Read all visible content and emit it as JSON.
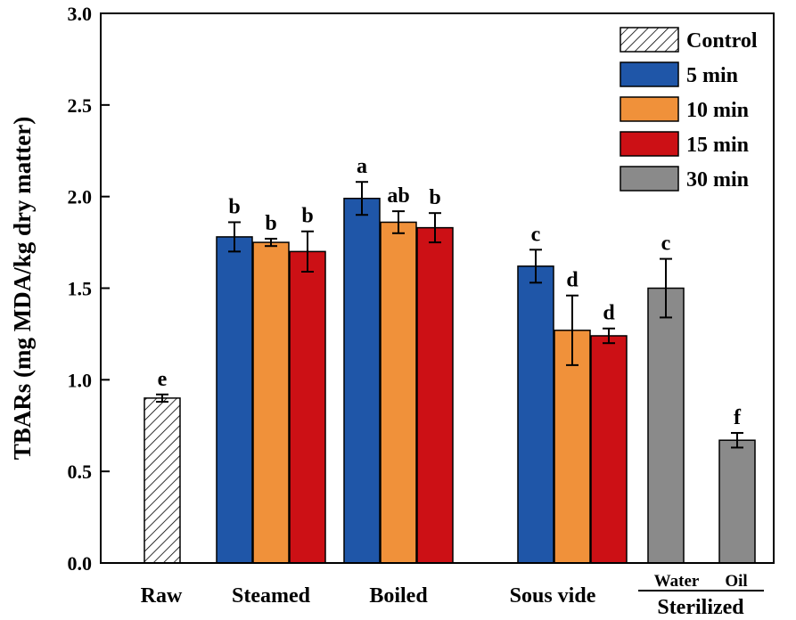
{
  "chart_data": {
    "type": "bar",
    "ylabel": "TBARs (mg MDA/kg dry matter)",
    "ylim": [
      0,
      3.0
    ],
    "yticks": [
      "0.0",
      "0.5",
      "1.0",
      "1.5",
      "2.0",
      "2.5",
      "3.0"
    ],
    "groups": [
      {
        "label": "Raw",
        "bars": [
          {
            "series": "Control",
            "value": 0.9,
            "error": 0.02,
            "sig": "e"
          }
        ]
      },
      {
        "label": "Steamed",
        "bars": [
          {
            "series": "5 min",
            "value": 1.78,
            "error": 0.08,
            "sig": "b"
          },
          {
            "series": "10 min",
            "value": 1.75,
            "error": 0.02,
            "sig": "b"
          },
          {
            "series": "15 min",
            "value": 1.7,
            "error": 0.11,
            "sig": "b"
          }
        ]
      },
      {
        "label": "Boiled",
        "bars": [
          {
            "series": "5 min",
            "value": 1.99,
            "error": 0.09,
            "sig": "a"
          },
          {
            "series": "10 min",
            "value": 1.86,
            "error": 0.06,
            "sig": "ab"
          },
          {
            "series": "15 min",
            "value": 1.83,
            "error": 0.08,
            "sig": "b"
          }
        ]
      },
      {
        "label": "Sous vide",
        "bars": [
          {
            "series": "5 min",
            "value": 1.62,
            "error": 0.09,
            "sig": "c"
          },
          {
            "series": "10 min",
            "value": 1.27,
            "error": 0.19,
            "sig": "d"
          },
          {
            "series": "15 min",
            "value": 1.24,
            "error": 0.04,
            "sig": "d"
          }
        ]
      },
      {
        "label": "Sterilized",
        "subgroups": [
          "Water",
          "Oil"
        ],
        "bars": [
          {
            "series": "30 min",
            "value": 1.5,
            "error": 0.16,
            "sig": "c"
          },
          {
            "series": "30 min",
            "value": 0.67,
            "error": 0.04,
            "sig": "f"
          }
        ]
      }
    ],
    "legend": [
      {
        "name": "Control",
        "color": "#ffffff",
        "pattern": "hatch"
      },
      {
        "name": "5 min",
        "color": "#1f56a8"
      },
      {
        "name": "10 min",
        "color": "#f0913a"
      },
      {
        "name": "15 min",
        "color": "#cc1015"
      },
      {
        "name": "30 min",
        "color": "#8a8a8a"
      }
    ]
  }
}
